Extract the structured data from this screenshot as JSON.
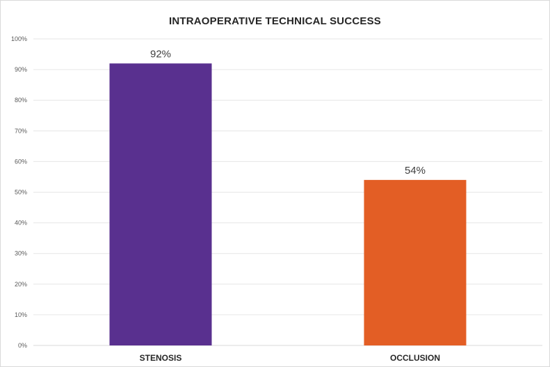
{
  "chart_data": {
    "type": "bar",
    "title": "INTRAOPERATIVE TECHNICAL SUCCESS",
    "categories": [
      "STENOSIS",
      "OCCLUSION"
    ],
    "values": [
      92,
      54
    ],
    "data_labels": [
      "92%",
      "54%"
    ],
    "colors": [
      "#59308f",
      "#e35e25"
    ],
    "ylim": [
      0,
      100
    ],
    "y_ticks": [
      {
        "value": 0,
        "label": "0%"
      },
      {
        "value": 10,
        "label": "10%"
      },
      {
        "value": 20,
        "label": "20%"
      },
      {
        "value": 30,
        "label": "30%"
      },
      {
        "value": 40,
        "label": "40%"
      },
      {
        "value": 50,
        "label": "50%"
      },
      {
        "value": 60,
        "label": "60%"
      },
      {
        "value": 70,
        "label": "70%"
      },
      {
        "value": 80,
        "label": "80%"
      },
      {
        "value": 90,
        "label": "90%"
      },
      {
        "value": 100,
        "label": "100%"
      }
    ],
    "grid": true,
    "gridline_color": "#e6e6e6",
    "legend": "none"
  }
}
